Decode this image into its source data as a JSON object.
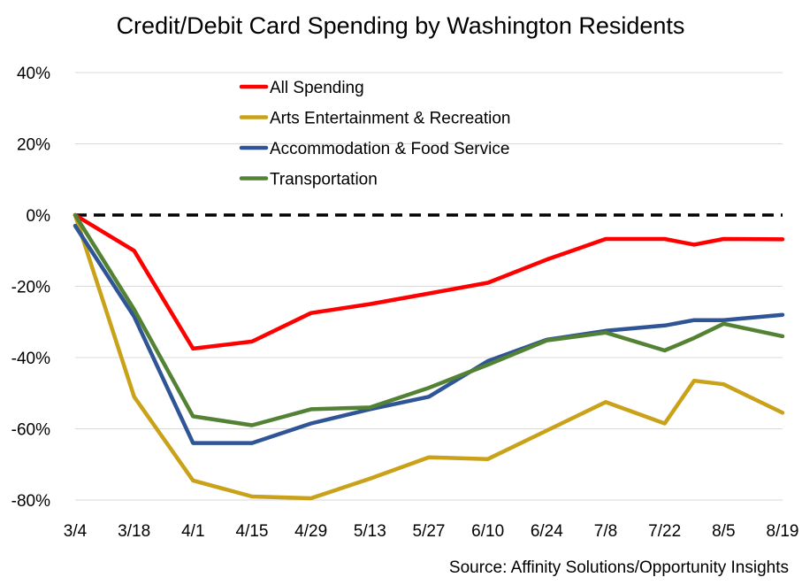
{
  "chart_data": {
    "type": "line",
    "title": "Credit/Debit Card Spending by Washington Residents",
    "source": "Source: Affinity Solutions/Opportunity Insights",
    "xlabel": "",
    "ylabel": "",
    "x_labels": [
      "3/4",
      "3/18",
      "4/1",
      "4/15",
      "4/29",
      "5/13",
      "5/27",
      "6/10",
      "6/24",
      "7/8",
      "7/22",
      "8/5",
      "8/19"
    ],
    "x_range": [
      0,
      12
    ],
    "y_ticks": [
      40,
      20,
      0,
      -20,
      -40,
      -60,
      -80
    ],
    "y_tick_labels": [
      "40%",
      "20%",
      "0%",
      "-20%",
      "-40%",
      "-60%",
      "-80%"
    ],
    "ylim": [
      -80,
      40
    ],
    "reference_line": {
      "y": 0,
      "style": "dashed",
      "color": "#000000"
    },
    "grid": true,
    "legend_position": "top-center",
    "series": [
      {
        "name": "All Spending",
        "color": "#ff0000",
        "x": [
          0,
          1,
          2,
          3,
          4,
          5,
          6,
          7,
          8,
          9,
          10,
          10.5,
          11,
          12
        ],
        "values": [
          0,
          -10,
          -37.5,
          -35.5,
          -27.5,
          -25,
          -22,
          -19,
          -12.5,
          -6.7,
          -6.7,
          -8.3,
          -6.7,
          -6.8
        ]
      },
      {
        "name": "Arts Entertainment & Recreation",
        "color": "#c9a21a",
        "x": [
          0,
          1,
          2,
          3,
          4,
          5,
          6,
          7,
          8,
          9,
          10,
          10.5,
          11,
          12
        ],
        "values": [
          0,
          -51,
          -74.5,
          -79,
          -79.5,
          -74,
          -68,
          -68.5,
          -60.5,
          -52.5,
          -58.5,
          -46.5,
          -47.5,
          -55.5
        ]
      },
      {
        "name": "Accommodation & Food Service",
        "color": "#2f5597",
        "x": [
          0,
          1,
          2,
          3,
          4,
          5,
          6,
          7,
          8,
          9,
          10,
          10.5,
          11,
          12
        ],
        "values": [
          -3,
          -28.5,
          -64,
          -64,
          -58.5,
          -54.5,
          -51,
          -41,
          -35,
          -32.5,
          -31,
          -29.5,
          -29.5,
          -28
        ]
      },
      {
        "name": "Transportation",
        "color": "#548235",
        "x": [
          0,
          1,
          2,
          3,
          4,
          5,
          6,
          7,
          8,
          9,
          10,
          10.5,
          11,
          12
        ],
        "values": [
          0,
          -26.5,
          -56.5,
          -59,
          -54.5,
          -54,
          -48.5,
          -42,
          -35.2,
          -33,
          -38,
          -34.5,
          -30.5,
          -34
        ]
      }
    ]
  }
}
